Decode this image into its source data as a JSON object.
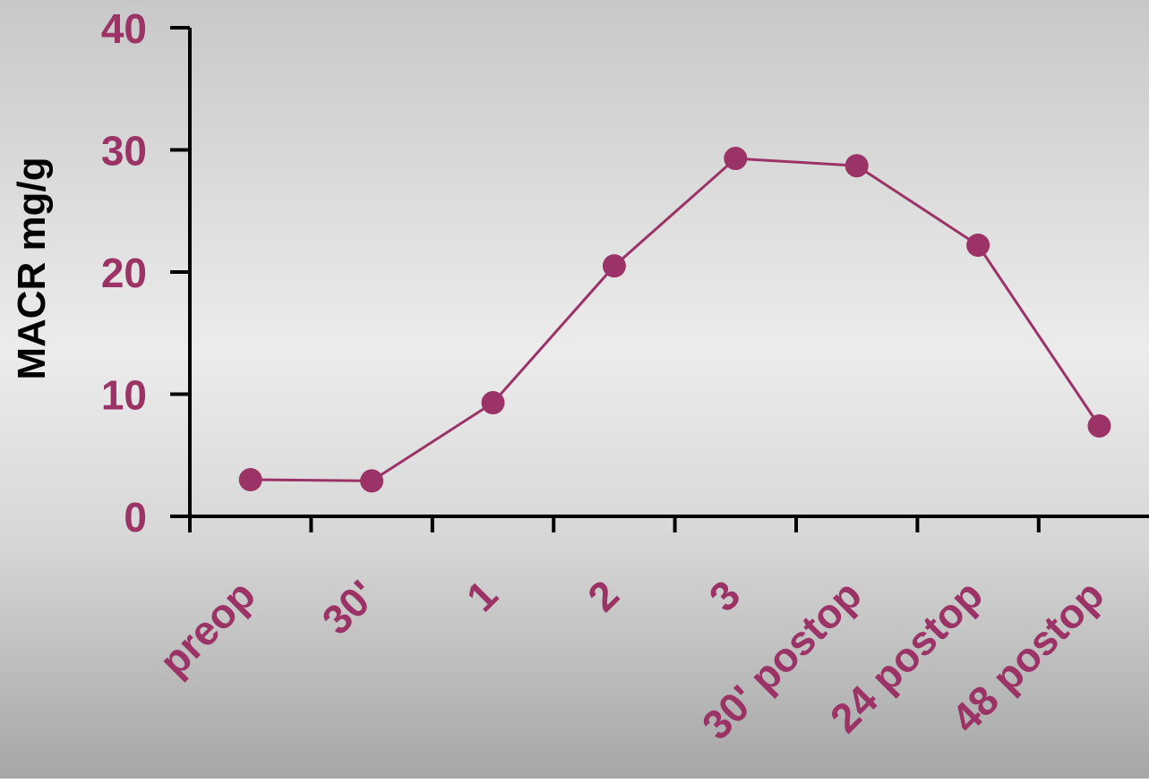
{
  "colors": {
    "accent": "#9b3366",
    "axis": "#000000",
    "background_light": "#ececec",
    "background_dark": "#a9a9a9"
  },
  "chart_data": {
    "type": "line",
    "title": "",
    "xlabel": "",
    "ylabel": "MACR mg/g",
    "categories": [
      "preop",
      "30'",
      "1",
      "2",
      "3",
      "30' postop",
      "24 postop",
      "48 postop"
    ],
    "series": [
      {
        "values": [
          3.0,
          2.9,
          9.3,
          20.5,
          29.3,
          28.7,
          22.2,
          7.4
        ]
      }
    ],
    "ylim": [
      0,
      40
    ],
    "yticks": [
      "0",
      "10",
      "20",
      "30",
      "40"
    ],
    "grid": false,
    "legend": "none"
  }
}
